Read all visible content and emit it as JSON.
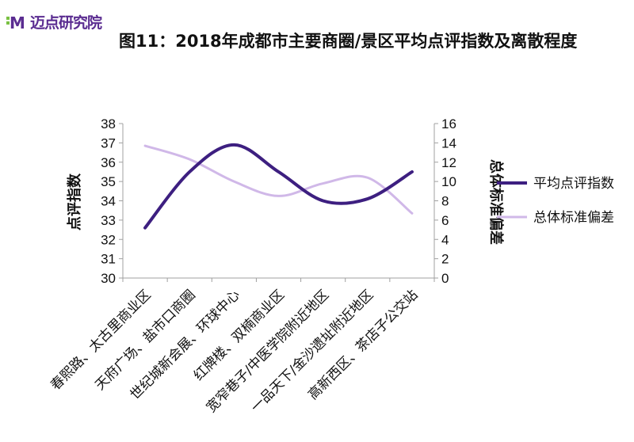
{
  "logo": {
    "text": "迈点研究院",
    "mark": "M"
  },
  "colors": {
    "primary": "#3d1f80",
    "secondary": "#d0b8e8",
    "brand": "#5b2d91"
  },
  "chart_data": {
    "type": "line",
    "title": "图11：2018年成都市主要商圈/景区平均点评指数及离散程度",
    "ylabel": "点评指数",
    "y2label": "总体标准偏差",
    "ylim": [
      30,
      38
    ],
    "y2lim": [
      0,
      16
    ],
    "yticks": [
      "30",
      "31",
      "32",
      "33",
      "34",
      "35",
      "36",
      "37",
      "38"
    ],
    "y2ticks": [
      "0",
      "2",
      "4",
      "6",
      "8",
      "10",
      "12",
      "14",
      "16"
    ],
    "categories": [
      "春熙路、太古里商业区",
      "天府广场、盐市口商圈",
      "世纪城新会展、环球中心",
      "红牌楼、双楠商业区",
      "宽窄巷子/中医学院附近地区",
      "一品天下/金沙遗址附近地区",
      "高新西区、茶店子公交站"
    ],
    "series": [
      {
        "name": "平均点评指数",
        "axis": "left",
        "color": "#3d1f80",
        "values": [
          32.6,
          35.5,
          36.9,
          35.5,
          34.0,
          34.1,
          35.5
        ]
      },
      {
        "name": "总体标准偏差",
        "axis": "right",
        "color": "#d0b8e8",
        "values": [
          13.7,
          12.3,
          10.0,
          8.5,
          9.8,
          10.4,
          6.7
        ]
      }
    ],
    "legend": "right",
    "grid": false
  }
}
